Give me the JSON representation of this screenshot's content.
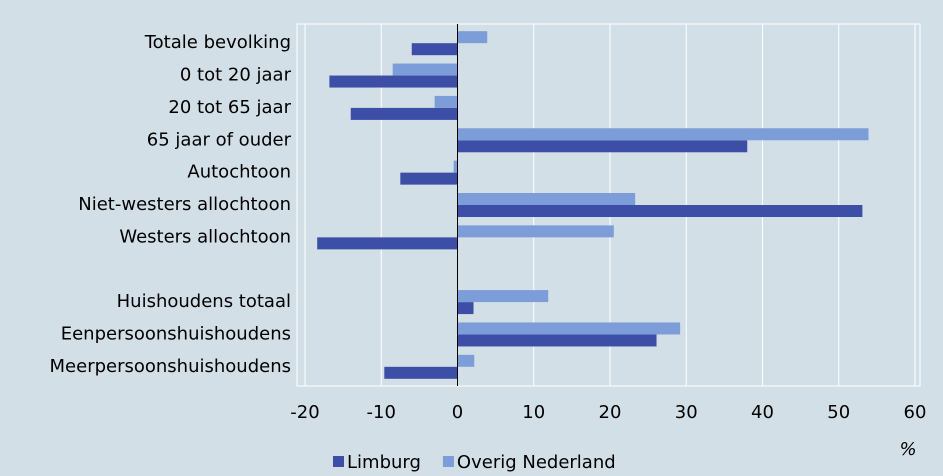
{
  "chart_data": {
    "type": "hbar",
    "categories": [
      "Totale bevolking",
      "0 tot 20 jaar",
      "20 tot 65 jaar",
      "65 jaar of ouder",
      "Autochtoon",
      "Niet-westers allochtoon",
      "Westers allochtoon",
      null,
      "Huishoudens totaal",
      "Eenpersoonshuishoudens",
      "Meerpersoonshuishoudens"
    ],
    "series": [
      {
        "name": "Limburg",
        "color": "#3d4ea6",
        "values": [
          -6.0,
          -16.8,
          -14.0,
          38.0,
          -7.5,
          53.1,
          -18.4,
          null,
          2.1,
          26.1,
          -9.6
        ]
      },
      {
        "name": "Overig Nederland",
        "color": "#7d9dd8",
        "values": [
          3.9,
          -8.5,
          -3.0,
          53.9,
          -0.5,
          23.3,
          20.5,
          null,
          11.9,
          29.2,
          2.2
        ]
      }
    ],
    "xlim": [
      -20,
      60
    ],
    "xticks": [
      -20,
      -10,
      0,
      10,
      20,
      30,
      40,
      50,
      60
    ],
    "xlabel": "%",
    "grid": true,
    "legend": "bottom"
  }
}
